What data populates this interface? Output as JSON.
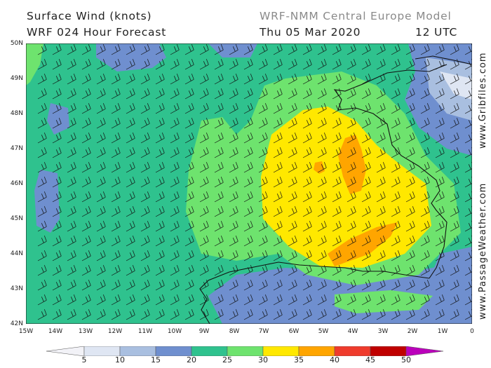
{
  "header": {
    "title_line1": "Surface Wind (knots)",
    "title_line2": "WRF 024 Hour Forecast",
    "model": "WRF-NMM Central Europe Model",
    "valid_date": "Thu 05 Mar 2020",
    "valid_time": "12 UTC"
  },
  "axes": {
    "lat_labels": [
      "50N",
      "49N",
      "48N",
      "47N",
      "46N",
      "45N",
      "44N",
      "43N",
      "42N"
    ],
    "lon_labels": [
      "15W",
      "14W",
      "13W",
      "12W",
      "11W",
      "10W",
      "9W",
      "8W",
      "7W",
      "6W",
      "5W",
      "4W",
      "3W",
      "2W",
      "1W",
      "0"
    ]
  },
  "watermarks": {
    "right_top": "www.Gribfiles.com",
    "right_bottom": "www.PassageWeather.com"
  },
  "legend": {
    "labels": [
      "5",
      "10",
      "15",
      "20",
      "25",
      "30",
      "35",
      "40",
      "45",
      "50"
    ],
    "colors": [
      "#f2f2f7",
      "#dfe6f3",
      "#a9bfe0",
      "#6f8fcf",
      "#2fc28e",
      "#6ee36e",
      "#ffe800",
      "#ffa500",
      "#ef3b2c",
      "#c00000",
      "#bb00bb"
    ]
  },
  "wind_barb_direction": "west-northwest"
}
